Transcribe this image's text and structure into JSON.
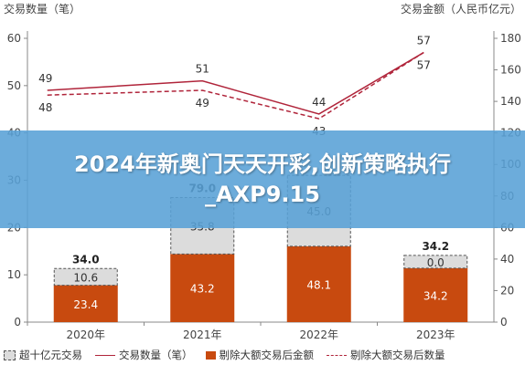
{
  "colors": {
    "sold": "#c84a0f",
    "stacked_fill": "#dcdcdc",
    "stacked_border": "#555555",
    "line_solid": "#b0243a",
    "line_dashed": "#b0243a",
    "axis": "#888888",
    "banner": "#58a0d6"
  },
  "banner": {
    "title": "2024年新奥门天天开彩,创新策略执行_AXP9.15"
  },
  "chart_data": {
    "type": "bar",
    "categories": [
      "2020年",
      "2021年",
      "2022年",
      "2023年"
    ],
    "left_axis": {
      "title": "交易数量（笔）",
      "ylim": [
        0,
        60
      ],
      "ticks": [
        0,
        10,
        20,
        30,
        40,
        50,
        60
      ]
    },
    "right_axis": {
      "title": "交易金额（人民币亿元）",
      "ylim": [
        0,
        180
      ],
      "ticks": [
        0,
        20,
        40,
        60,
        80,
        100,
        120,
        140,
        160,
        180
      ]
    },
    "series": [
      {
        "name": "剔除大额交易后金额",
        "kind": "bar",
        "axis": "right",
        "values": [
          23.4,
          43.2,
          48.1,
          34.2
        ],
        "labels": [
          "23.4",
          "43.2",
          "48.1",
          "34.2"
        ]
      },
      {
        "name": "超十亿元交易",
        "kind": "stacked-bar",
        "axis": "right",
        "values": [
          10.6,
          35.8,
          45.0,
          0.0
        ],
        "labels": [
          "10.6",
          "35.8",
          "45.0",
          "0.0"
        ]
      },
      {
        "name": "交易数量（笔）",
        "kind": "line-solid",
        "axis": "left",
        "values": [
          49,
          51,
          44,
          57
        ],
        "labels": [
          "49",
          "51",
          "44",
          "57"
        ]
      },
      {
        "name": "剔除大额交易后数量",
        "kind": "line-dashed",
        "axis": "left",
        "values": [
          48,
          49,
          43,
          57
        ],
        "labels": [
          "48",
          "49",
          "43",
          "57"
        ]
      }
    ],
    "totals": [
      "34.0",
      "79.0",
      "",
      "34.2"
    ],
    "grid": false,
    "legend_position": "bottom"
  }
}
